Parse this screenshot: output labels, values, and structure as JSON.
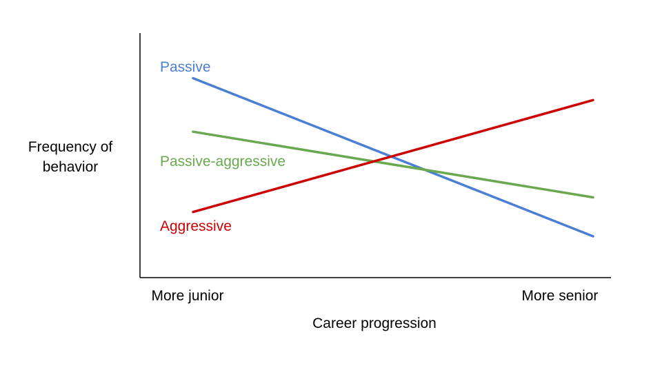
{
  "chart_data": {
    "type": "line",
    "title": "",
    "xlabel": "Career progression",
    "ylabel": "Frequency of behavior",
    "ylabel_lines": [
      "Frequency of",
      "behavior"
    ],
    "x_tick_labels": [
      "More junior",
      "More senior"
    ],
    "x": [
      0,
      1
    ],
    "xlim": [
      0,
      1
    ],
    "ylim": [
      0,
      1
    ],
    "grid": false,
    "legend": "inline-left",
    "series": [
      {
        "name": "Passive",
        "values": [
          0.82,
          0.17
        ],
        "color": "#4a7fd4"
      },
      {
        "name": "Passive-aggressive",
        "values": [
          0.6,
          0.33
        ],
        "color": "#6aa84f"
      },
      {
        "name": "Aggressive",
        "values": [
          0.27,
          0.73
        ],
        "color": "#cc0000"
      }
    ]
  }
}
